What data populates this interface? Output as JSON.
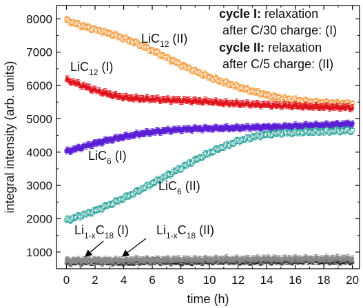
{
  "chart_data": {
    "type": "scatter",
    "xlabel": "time (h)",
    "ylabel": "integral intensity (arb. units)",
    "xlim": [
      -0.7,
      20.5
    ],
    "ylim": [
      500,
      8400
    ],
    "xticks": [
      0,
      2,
      4,
      6,
      8,
      10,
      12,
      14,
      16,
      18,
      20
    ],
    "yticks": [
      1000,
      2000,
      3000,
      4000,
      5000,
      6000,
      7000,
      8000
    ],
    "xtick_labels": [
      "0",
      "2",
      "4",
      "6",
      "8",
      "10",
      "12",
      "14",
      "16",
      "18",
      "20"
    ],
    "ytick_labels": [
      "1000",
      "2000",
      "3000",
      "4000",
      "5000",
      "6000",
      "7000",
      "8000"
    ],
    "legend_text": {
      "line1_bold": "cycle I:",
      "line1_rest": " relaxation",
      "line2": "after C/30 charge: (I)",
      "line3_bold": "cycle II:",
      "line3_rest": " relaxation",
      "line4": "after C/5 charge: (II)"
    },
    "series": [
      {
        "id": "LiC12_II",
        "label_main": "LiC",
        "label_sub": "12",
        "label_tail": " (II)",
        "color": "#f39a3c",
        "marker": "square-open",
        "x": [
          0,
          1,
          2,
          3,
          4,
          5,
          6,
          7,
          8,
          9,
          10,
          11,
          12,
          13,
          14,
          15,
          16,
          17,
          18,
          19,
          20
        ],
        "y": [
          7960,
          7800,
          7680,
          7560,
          7420,
          7250,
          7050,
          6840,
          6620,
          6430,
          6250,
          6100,
          5960,
          5830,
          5710,
          5620,
          5560,
          5510,
          5480,
          5460,
          5450
        ]
      },
      {
        "id": "LiC12_I",
        "label_main": "LiC",
        "label_sub": "12",
        "label_tail": " (I)",
        "color": "#e0141c",
        "marker": "triangle-filled",
        "x": [
          0,
          1,
          2,
          3,
          4,
          5,
          6,
          7,
          8,
          9,
          10,
          11,
          12,
          13,
          14,
          15,
          16,
          17,
          18,
          19,
          20
        ],
        "y": [
          6180,
          6020,
          5860,
          5740,
          5650,
          5610,
          5600,
          5570,
          5560,
          5540,
          5520,
          5480,
          5460,
          5440,
          5420,
          5400,
          5390,
          5370,
          5360,
          5350,
          5340
        ]
      },
      {
        "id": "LiC6_I",
        "label_main": "LiC",
        "label_sub": "6",
        "label_tail": " (I)",
        "color": "#5a1ed6",
        "marker": "square-filled",
        "x": [
          0,
          1,
          2,
          3,
          4,
          5,
          6,
          7,
          8,
          9,
          10,
          11,
          12,
          13,
          14,
          15,
          16,
          17,
          18,
          19,
          20
        ],
        "y": [
          4020,
          4140,
          4260,
          4370,
          4460,
          4540,
          4600,
          4650,
          4680,
          4700,
          4710,
          4720,
          4730,
          4740,
          4750,
          4760,
          4780,
          4800,
          4810,
          4830,
          4850
        ]
      },
      {
        "id": "LiC6_II",
        "label_main": "LiC",
        "label_sub": "6",
        "label_tail": " (II)",
        "color": "#2aa39a",
        "marker": "square-open",
        "x": [
          0,
          1,
          2,
          3,
          4,
          5,
          6,
          7,
          8,
          9,
          10,
          11,
          12,
          13,
          14,
          15,
          16,
          17,
          18,
          19,
          20
        ],
        "y": [
          1950,
          2090,
          2240,
          2420,
          2620,
          2830,
          3060,
          3290,
          3520,
          3760,
          3980,
          4170,
          4330,
          4450,
          4530,
          4570,
          4590,
          4610,
          4620,
          4640,
          4650
        ]
      },
      {
        "id": "Li1xC18_I",
        "label_main": "Li",
        "label_sub": "1-x",
        "label_tail2_main": "C",
        "label_tail2_sub": "18",
        "label_tail": " (I)",
        "color": "#1a1a1a",
        "marker": "triangle-open",
        "x": [
          0,
          1,
          2,
          3,
          4,
          5,
          6,
          7,
          8,
          9,
          10,
          11,
          12,
          13,
          14,
          15,
          16,
          17,
          18,
          19,
          20
        ],
        "y": [
          700,
          710,
          720,
          710,
          700,
          720,
          730,
          720,
          710,
          720,
          730,
          740,
          730,
          720,
          740,
          730,
          740,
          750,
          740,
          730,
          740
        ]
      },
      {
        "id": "Li1xC18_II",
        "label_main": "Li",
        "label_sub": "1-x",
        "label_tail2_main": "C",
        "label_tail2_sub": "18",
        "label_tail": " (II)",
        "color": "#8a8a8a",
        "marker": "circle-filled",
        "x": [
          0,
          1,
          2,
          3,
          4,
          5,
          6,
          7,
          8,
          9,
          10,
          11,
          12,
          13,
          14,
          15,
          16,
          17,
          18,
          19,
          20
        ],
        "y": [
          740,
          750,
          760,
          750,
          760,
          770,
          760,
          770,
          780,
          770,
          780,
          790,
          780,
          790,
          800,
          790,
          800,
          790,
          800,
          810,
          800
        ]
      }
    ]
  }
}
